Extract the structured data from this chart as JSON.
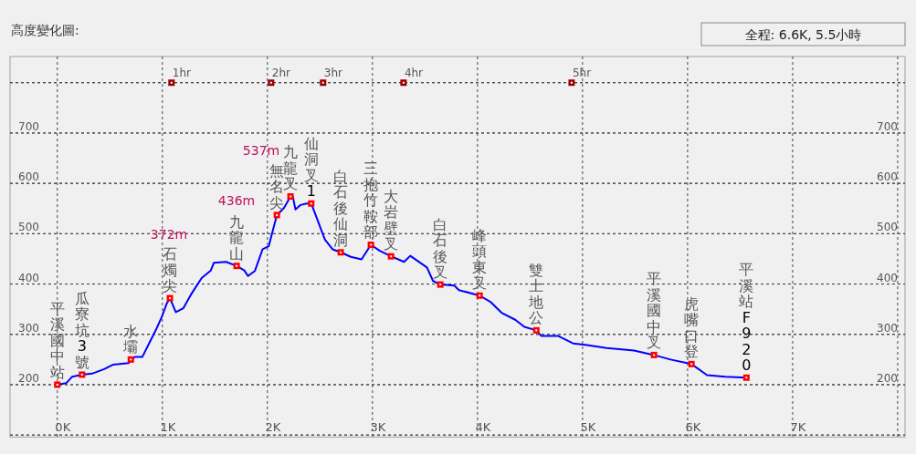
{
  "chart_data": {
    "type": "line",
    "title": "高度變化圖:",
    "annotations": [
      "全程: 6.6K, 5.5小時",
      "372m",
      "436m",
      "537m",
      {
        "text": "1hr",
        "x": 1.087,
        "y": 800
      },
      {
        "text": "2hr",
        "x": 2.035,
        "y": 800
      },
      {
        "text": "3hr",
        "x": 2.53,
        "y": 800
      },
      {
        "text": "4hr",
        "x": 3.296,
        "y": 800
      },
      {
        "text": "5hr",
        "x": 4.896,
        "y": 800
      }
    ],
    "xlim": [
      -0.45,
      8.07
    ],
    "ylim": [
      96,
      852
    ],
    "y2lim": [
      96,
      852
    ],
    "xticks": [
      {
        "value": 0,
        "label": "0K"
      },
      {
        "value": 1,
        "label": "1K"
      },
      {
        "value": 2,
        "label": "2K"
      },
      {
        "value": 3,
        "label": "3K"
      },
      {
        "value": 4,
        "label": "4K"
      },
      {
        "value": 5,
        "label": "5K"
      },
      {
        "value": 6,
        "label": "6K"
      },
      {
        "value": 7,
        "label": "7K"
      },
      {
        "value": 8,
        "label": null
      }
    ],
    "yticks": [
      {
        "value": 100,
        "label": null
      },
      200,
      300,
      400,
      500,
      600,
      700,
      {
        "value": 800,
        "label": null
      }
    ],
    "y2ticks": [
      {
        "value": 100,
        "label": null
      },
      200,
      300,
      400,
      500,
      600,
      700,
      {
        "value": 800,
        "label": null
      }
    ],
    "grid": true,
    "series": [
      {
        "color": "#0000ff",
        "marker": "none",
        "x": [
          0,
          0.084,
          0.142,
          0.235,
          0.33,
          0.446,
          0.533,
          0.678,
          0.736,
          0.809,
          0.881,
          0.939,
          0.997,
          1.041,
          1.072,
          1.128,
          1.2,
          1.272,
          1.374,
          1.461,
          1.49,
          1.606,
          1.707,
          1.78,
          1.815,
          1.881,
          1.954,
          2.012,
          2.09,
          2.157,
          2.22,
          2.243,
          2.267,
          2.316,
          2.374,
          2.417,
          2.461,
          2.504,
          2.548,
          2.62,
          2.698,
          2.794,
          2.896,
          2.985,
          3.07,
          3.177,
          3.301,
          3.36,
          3.519,
          3.577,
          3.646,
          3.78,
          3.823,
          4.02,
          4.127,
          4.229,
          4.359,
          4.446,
          4.56,
          4.606,
          4.765,
          4.91,
          5.026,
          5.229,
          5.49,
          5.68,
          5.837,
          6.037,
          6.185,
          6.359,
          6.56
        ],
        "values": [
          200,
          203,
          216,
          220,
          222,
          231,
          240,
          243,
          255,
          255,
          285,
          309,
          336,
          361,
          372,
          344,
          352,
          379,
          412,
          427,
          442,
          444,
          436,
          427,
          416,
          426,
          469,
          475,
          537,
          551,
          574,
          573,
          548,
          557,
          560,
          560,
          536,
          512,
          488,
          469,
          463,
          454,
          449,
          478,
          466,
          455,
          444,
          456,
          433,
          406,
          399,
          397,
          388,
          377,
          364,
          343,
          329,
          315,
          308,
          297,
          297,
          282,
          279,
          273,
          268,
          259,
          250,
          241,
          219,
          216,
          214
        ]
      },
      {
        "type": "scatter",
        "color": "#ff0000",
        "marker": "square",
        "x": [
          0,
          0.235,
          0.7,
          1.072,
          1.707,
          2.09,
          2.22,
          2.417,
          2.698,
          2.985,
          3.177,
          3.646,
          4.02,
          4.56,
          5.68,
          6.037,
          6.56
        ],
        "values": [
          200,
          220,
          250,
          372,
          436,
          537,
          574,
          560,
          463,
          478,
          455,
          399,
          377,
          308,
          259,
          241,
          214
        ],
        "value_labels": [
          "平溪國中站",
          "瓜寮坑3號",
          "水壩",
          "石燭尖",
          "九龍山",
          "無名尖",
          "九龍叉",
          "仙洞叉1",
          "白石後仙洞",
          "三抱竹鞍部",
          "大岩壁叉",
          "白石後叉",
          "峰頭東叉",
          "雙土地公",
          "平溪國中叉",
          "虎嘴口登",
          "平溪站F920"
        ]
      },
      {
        "type": "scatter",
        "color": "#990000",
        "marker": "square",
        "x": [
          1.087,
          2.035,
          2.53,
          3.296,
          4.896
        ],
        "values": [
          800,
          800,
          800,
          800,
          800
        ]
      }
    ]
  }
}
